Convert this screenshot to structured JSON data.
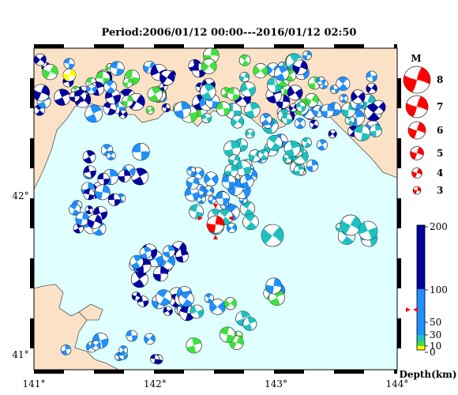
{
  "title": "Period:2006/01/12 00:00---2016/01/12 02:50",
  "x_ticks": [
    {
      "value": 141,
      "label": "141°"
    },
    {
      "value": 142,
      "label": "142°"
    },
    {
      "value": 143,
      "label": "143°"
    },
    {
      "value": 144,
      "label": "144°"
    }
  ],
  "y_ticks": [
    {
      "value": 42,
      "label": "42°"
    },
    {
      "value": 41,
      "label": "41°"
    }
  ],
  "colors": {
    "sea": "#e0ffff",
    "land": "#fbe2c6",
    "mechanism": "#ff0000",
    "depth_deep": "#0000a0",
    "depth_mid": "#1e90ff",
    "depth_shallow": "#20c0c0",
    "depth_near": "#40e040",
    "depth_surface": "#ffff00"
  },
  "magnitude_legend": {
    "title": "M",
    "items": [
      {
        "m": 8,
        "label": "8"
      },
      {
        "m": 7,
        "label": "7"
      },
      {
        "m": 6,
        "label": "6"
      },
      {
        "m": 5,
        "label": "5"
      },
      {
        "m": 4,
        "label": "4"
      },
      {
        "m": 3,
        "label": "3"
      }
    ]
  },
  "depth_legend": {
    "title": "Depth(km)",
    "labels": [
      "200",
      "100",
      "50",
      "30",
      "10",
      "0"
    ]
  },
  "highlight_event": {
    "lon": 142.5,
    "lat": 41.82,
    "m": 6.5
  }
}
